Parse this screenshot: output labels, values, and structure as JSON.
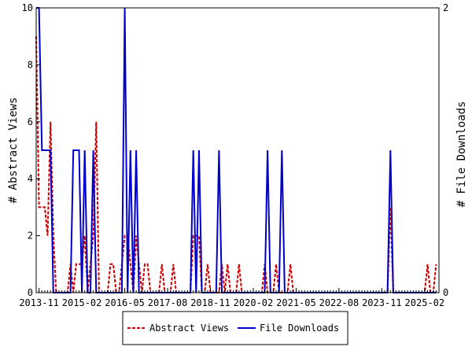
{
  "chart_data": {
    "type": "line",
    "title": "",
    "xlabel": "",
    "ylabel_left": "# Abstract Views",
    "ylabel_right": "# File Downloads",
    "x_range": [
      "2013-10",
      "2025-07"
    ],
    "ylim_left": [
      0,
      10
    ],
    "ylim_right": [
      0,
      2
    ],
    "yticks_left": [
      "0",
      "2",
      "4",
      "6",
      "8",
      "10"
    ],
    "yticks_right": [
      "0",
      "2"
    ],
    "xticks": [
      "2013-11",
      "2015-02",
      "2016-05",
      "2017-08",
      "2018-11",
      "2020-02",
      "2021-05",
      "2022-08",
      "2023-11",
      "2025-02"
    ],
    "grid": false,
    "legend_position": "bottom-center",
    "series": [
      {
        "name": "Abstract Views",
        "axis": "left",
        "color": "#cc0000",
        "dash": true,
        "points": [
          [
            "2013-10",
            9
          ],
          [
            "2013-11",
            3
          ],
          [
            "2013-12",
            3
          ],
          [
            "2014-01",
            3
          ],
          [
            "2014-02",
            2
          ],
          [
            "2014-03",
            6
          ],
          [
            "2014-04",
            2
          ],
          [
            "2014-05",
            0
          ],
          [
            "2014-06",
            0
          ],
          [
            "2014-07",
            0
          ],
          [
            "2014-08",
            0
          ],
          [
            "2014-09",
            0
          ],
          [
            "2014-10",
            1
          ],
          [
            "2014-11",
            0
          ],
          [
            "2014-12",
            1
          ],
          [
            "2015-01",
            1
          ],
          [
            "2015-02",
            1
          ],
          [
            "2015-03",
            2
          ],
          [
            "2015-04",
            0
          ],
          [
            "2015-05",
            1
          ],
          [
            "2015-06",
            2
          ],
          [
            "2015-07",
            6
          ],
          [
            "2015-08",
            0
          ],
          [
            "2015-09",
            0
          ],
          [
            "2015-10",
            0
          ],
          [
            "2015-11",
            0
          ],
          [
            "2015-12",
            1
          ],
          [
            "2016-01",
            1
          ],
          [
            "2016-02",
            0
          ],
          [
            "2016-03",
            0
          ],
          [
            "2016-04",
            1
          ],
          [
            "2016-05",
            2
          ],
          [
            "2016-06",
            2
          ],
          [
            "2016-07",
            1
          ],
          [
            "2016-08",
            0
          ],
          [
            "2016-09",
            2
          ],
          [
            "2016-10",
            1
          ],
          [
            "2016-11",
            0
          ],
          [
            "2016-12",
            1
          ],
          [
            "2017-01",
            1
          ],
          [
            "2017-02",
            0
          ],
          [
            "2017-03",
            0
          ],
          [
            "2017-04",
            0
          ],
          [
            "2017-05",
            0
          ],
          [
            "2017-06",
            1
          ],
          [
            "2017-07",
            0
          ],
          [
            "2017-08",
            0
          ],
          [
            "2017-09",
            0
          ],
          [
            "2017-10",
            1
          ],
          [
            "2017-11",
            0
          ],
          [
            "2017-12",
            0
          ],
          [
            "2018-01",
            0
          ],
          [
            "2018-02",
            0
          ],
          [
            "2018-03",
            0
          ],
          [
            "2018-04",
            0
          ],
          [
            "2018-05",
            2
          ],
          [
            "2018-06",
            2
          ],
          [
            "2018-07",
            2
          ],
          [
            "2018-08",
            0
          ],
          [
            "2018-09",
            0
          ],
          [
            "2018-10",
            1
          ],
          [
            "2018-11",
            0
          ],
          [
            "2018-12",
            0
          ],
          [
            "2019-01",
            0
          ],
          [
            "2019-02",
            0
          ],
          [
            "2019-03",
            1
          ],
          [
            "2019-04",
            0
          ],
          [
            "2019-05",
            1
          ],
          [
            "2019-06",
            0
          ],
          [
            "2019-07",
            0
          ],
          [
            "2019-08",
            0
          ],
          [
            "2019-09",
            1
          ],
          [
            "2019-10",
            0
          ],
          [
            "2019-11",
            0
          ],
          [
            "2019-12",
            0
          ],
          [
            "2020-01",
            0
          ],
          [
            "2020-02",
            0
          ],
          [
            "2020-03",
            0
          ],
          [
            "2020-04",
            0
          ],
          [
            "2020-05",
            0
          ],
          [
            "2020-06",
            1
          ],
          [
            "2020-07",
            0
          ],
          [
            "2020-08",
            0
          ],
          [
            "2020-09",
            0
          ],
          [
            "2020-10",
            1
          ],
          [
            "2020-11",
            0
          ],
          [
            "2020-12",
            0
          ],
          [
            "2021-01",
            0
          ],
          [
            "2021-02",
            0
          ],
          [
            "2021-03",
            1
          ],
          [
            "2021-04",
            0
          ],
          [
            "2021-05",
            0
          ],
          [
            "2021-06",
            0
          ],
          [
            "2021-07",
            0
          ],
          [
            "2021-08",
            0
          ],
          [
            "2021-09",
            0
          ],
          [
            "2021-10",
            0
          ],
          [
            "2021-11",
            0
          ],
          [
            "2021-12",
            0
          ],
          [
            "2022-01",
            0
          ],
          [
            "2022-02",
            0
          ],
          [
            "2022-03",
            0
          ],
          [
            "2022-04",
            0
          ],
          [
            "2022-05",
            0
          ],
          [
            "2022-06",
            0
          ],
          [
            "2022-07",
            0
          ],
          [
            "2022-08",
            0
          ],
          [
            "2022-09",
            0
          ],
          [
            "2022-10",
            0
          ],
          [
            "2022-11",
            0
          ],
          [
            "2022-12",
            0
          ],
          [
            "2023-01",
            0
          ],
          [
            "2023-02",
            0
          ],
          [
            "2023-03",
            0
          ],
          [
            "2023-04",
            0
          ],
          [
            "2023-05",
            0
          ],
          [
            "2023-06",
            0
          ],
          [
            "2023-07",
            0
          ],
          [
            "2023-08",
            0
          ],
          [
            "2023-09",
            0
          ],
          [
            "2023-10",
            0
          ],
          [
            "2023-11",
            0
          ],
          [
            "2023-12",
            0
          ],
          [
            "2024-01",
            0
          ],
          [
            "2024-02",
            3
          ],
          [
            "2024-03",
            0
          ],
          [
            "2024-04",
            0
          ],
          [
            "2024-05",
            0
          ],
          [
            "2024-06",
            0
          ],
          [
            "2024-07",
            0
          ],
          [
            "2024-08",
            0
          ],
          [
            "2024-09",
            0
          ],
          [
            "2024-10",
            0
          ],
          [
            "2024-11",
            0
          ],
          [
            "2024-12",
            0
          ],
          [
            "2025-01",
            0
          ],
          [
            "2025-02",
            0
          ],
          [
            "2025-03",
            1
          ],
          [
            "2025-04",
            0
          ],
          [
            "2025-05",
            0
          ],
          [
            "2025-06",
            1
          ]
        ]
      },
      {
        "name": "File Downloads",
        "axis": "right",
        "color": "#0000cc",
        "dash": false,
        "points": [
          [
            "2013-10",
            2
          ],
          [
            "2013-11",
            2
          ],
          [
            "2013-12",
            1
          ],
          [
            "2014-01",
            1
          ],
          [
            "2014-02",
            1
          ],
          [
            "2014-03",
            1
          ],
          [
            "2014-04",
            0
          ],
          [
            "2014-05",
            0
          ],
          [
            "2014-06",
            0
          ],
          [
            "2014-07",
            0
          ],
          [
            "2014-08",
            0
          ],
          [
            "2014-09",
            0
          ],
          [
            "2014-10",
            0
          ],
          [
            "2014-11",
            1
          ],
          [
            "2014-12",
            1
          ],
          [
            "2015-01",
            1
          ],
          [
            "2015-02",
            0
          ],
          [
            "2015-03",
            1
          ],
          [
            "2015-04",
            0
          ],
          [
            "2015-05",
            0
          ],
          [
            "2015-06",
            1
          ],
          [
            "2015-07",
            0
          ],
          [
            "2015-08",
            0
          ],
          [
            "2015-09",
            0
          ],
          [
            "2015-10",
            0
          ],
          [
            "2015-11",
            0
          ],
          [
            "2015-12",
            0
          ],
          [
            "2016-01",
            0
          ],
          [
            "2016-02",
            0
          ],
          [
            "2016-03",
            0
          ],
          [
            "2016-04",
            0
          ],
          [
            "2016-05",
            2
          ],
          [
            "2016-06",
            0
          ],
          [
            "2016-07",
            1
          ],
          [
            "2016-08",
            0
          ],
          [
            "2016-09",
            1
          ],
          [
            "2016-10",
            0
          ],
          [
            "2016-11",
            0
          ],
          [
            "2016-12",
            0
          ],
          [
            "2017-01",
            0
          ],
          [
            "2017-02",
            0
          ],
          [
            "2017-03",
            0
          ],
          [
            "2017-04",
            0
          ],
          [
            "2017-05",
            0
          ],
          [
            "2017-06",
            0
          ],
          [
            "2017-07",
            0
          ],
          [
            "2017-08",
            0
          ],
          [
            "2017-09",
            0
          ],
          [
            "2017-10",
            0
          ],
          [
            "2017-11",
            0
          ],
          [
            "2017-12",
            0
          ],
          [
            "2018-01",
            0
          ],
          [
            "2018-02",
            0
          ],
          [
            "2018-03",
            0
          ],
          [
            "2018-04",
            0
          ],
          [
            "2018-05",
            1
          ],
          [
            "2018-06",
            0
          ],
          [
            "2018-07",
            1
          ],
          [
            "2018-08",
            0
          ],
          [
            "2018-09",
            0
          ],
          [
            "2018-10",
            0
          ],
          [
            "2018-11",
            0
          ],
          [
            "2018-12",
            0
          ],
          [
            "2019-01",
            0
          ],
          [
            "2019-02",
            1
          ],
          [
            "2019-03",
            0
          ],
          [
            "2019-04",
            0
          ],
          [
            "2019-05",
            0
          ],
          [
            "2019-06",
            0
          ],
          [
            "2019-07",
            0
          ],
          [
            "2019-08",
            0
          ],
          [
            "2019-09",
            0
          ],
          [
            "2019-10",
            0
          ],
          [
            "2019-11",
            0
          ],
          [
            "2019-12",
            0
          ],
          [
            "2020-01",
            0
          ],
          [
            "2020-02",
            0
          ],
          [
            "2020-03",
            0
          ],
          [
            "2020-04",
            0
          ],
          [
            "2020-05",
            0
          ],
          [
            "2020-06",
            0
          ],
          [
            "2020-07",
            1
          ],
          [
            "2020-08",
            0
          ],
          [
            "2020-09",
            0
          ],
          [
            "2020-10",
            0
          ],
          [
            "2020-11",
            0
          ],
          [
            "2020-12",
            1
          ],
          [
            "2021-01",
            0
          ],
          [
            "2021-02",
            0
          ],
          [
            "2021-03",
            0
          ],
          [
            "2021-04",
            0
          ],
          [
            "2021-05",
            0
          ],
          [
            "2021-06",
            0
          ],
          [
            "2021-07",
            0
          ],
          [
            "2021-08",
            0
          ],
          [
            "2021-09",
            0
          ],
          [
            "2021-10",
            0
          ],
          [
            "2021-11",
            0
          ],
          [
            "2021-12",
            0
          ],
          [
            "2022-01",
            0
          ],
          [
            "2022-02",
            0
          ],
          [
            "2022-03",
            0
          ],
          [
            "2022-04",
            0
          ],
          [
            "2022-05",
            0
          ],
          [
            "2022-06",
            0
          ],
          [
            "2022-07",
            0
          ],
          [
            "2022-08",
            0
          ],
          [
            "2022-09",
            0
          ],
          [
            "2022-10",
            0
          ],
          [
            "2022-11",
            0
          ],
          [
            "2022-12",
            0
          ],
          [
            "2023-01",
            0
          ],
          [
            "2023-02",
            0
          ],
          [
            "2023-03",
            0
          ],
          [
            "2023-04",
            0
          ],
          [
            "2023-05",
            0
          ],
          [
            "2023-06",
            0
          ],
          [
            "2023-07",
            0
          ],
          [
            "2023-08",
            0
          ],
          [
            "2023-09",
            0
          ],
          [
            "2023-10",
            0
          ],
          [
            "2023-11",
            0
          ],
          [
            "2023-12",
            0
          ],
          [
            "2024-01",
            0
          ],
          [
            "2024-02",
            1
          ],
          [
            "2024-03",
            0
          ],
          [
            "2024-04",
            0
          ],
          [
            "2024-05",
            0
          ],
          [
            "2024-06",
            0
          ],
          [
            "2024-07",
            0
          ],
          [
            "2024-08",
            0
          ],
          [
            "2024-09",
            0
          ],
          [
            "2024-10",
            0
          ],
          [
            "2024-11",
            0
          ],
          [
            "2024-12",
            0
          ],
          [
            "2025-01",
            0
          ],
          [
            "2025-02",
            0
          ],
          [
            "2025-03",
            0
          ],
          [
            "2025-04",
            0
          ],
          [
            "2025-05",
            0
          ],
          [
            "2025-06",
            0
          ]
        ]
      }
    ]
  }
}
